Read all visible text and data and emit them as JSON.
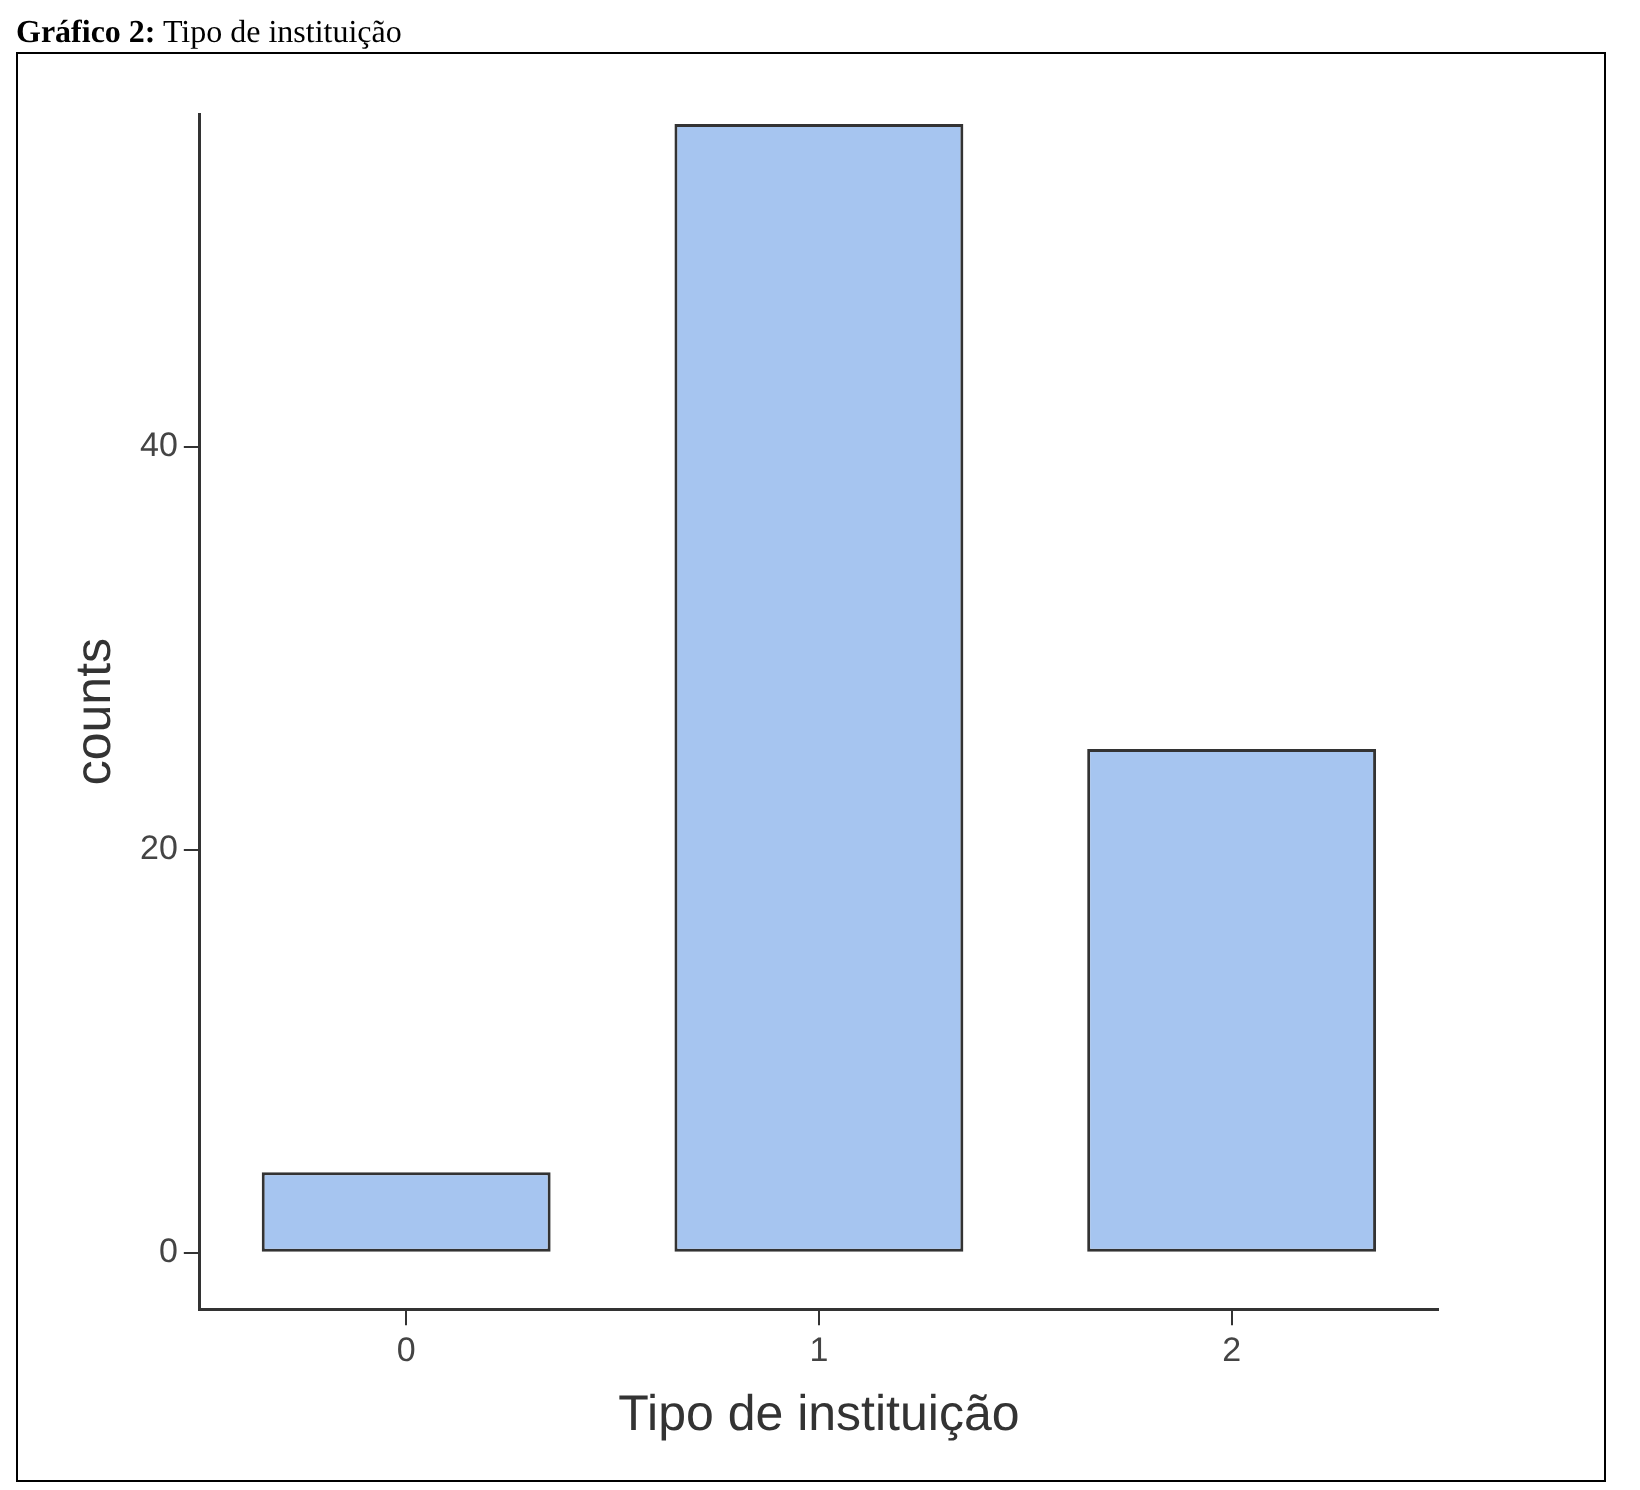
{
  "chart_data": {
    "type": "bar",
    "title": "Gráfico 2: Tipo de instituição",
    "xlabel": "Tipo de instituição",
    "ylabel": "counts",
    "categories": [
      "0",
      "1",
      "2"
    ],
    "values": [
      4,
      56,
      25
    ],
    "color": "#a6c5f0",
    "ylim": [
      -2.8,
      56.5
    ],
    "yticks": [
      0,
      20,
      40
    ],
    "grid": false,
    "legend": false
  }
}
